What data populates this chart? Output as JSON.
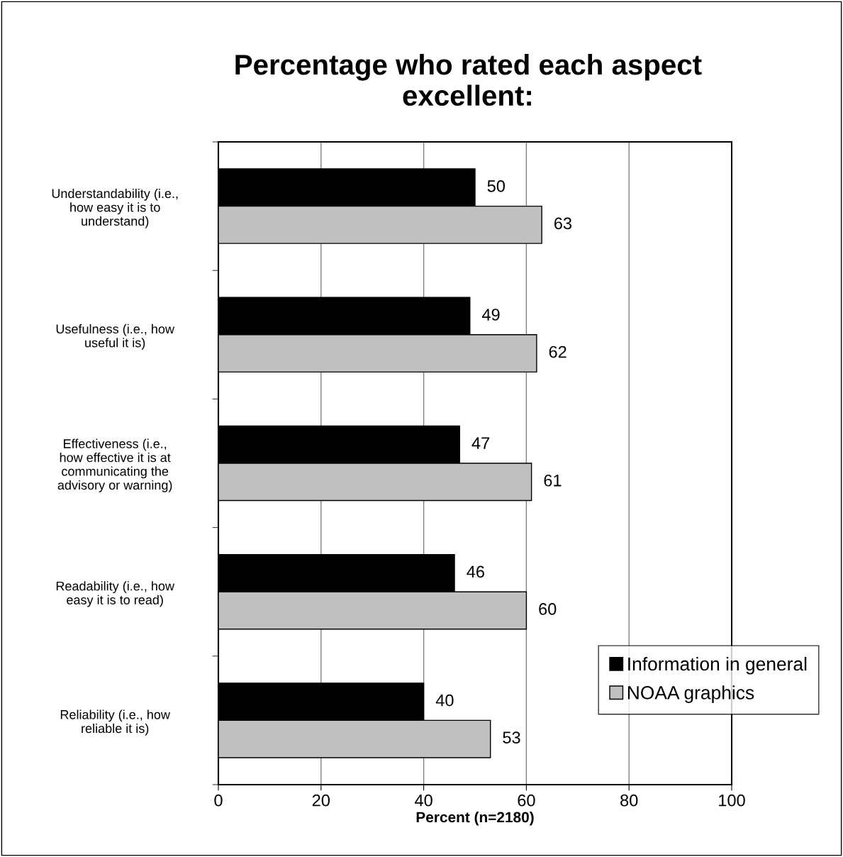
{
  "chart_data": {
    "type": "bar",
    "orientation": "horizontal",
    "title": "Percentage who rated each aspect\nexcellent:",
    "xlabel": "Percent (n=2180)",
    "categories": [
      "Understandability (i.e.,\nhow easy it is to\nunderstand)",
      "Usefulness (i.e., how\nuseful it is)",
      "Effectiveness (i.e.,\nhow effective it is at\ncommunicating the\nadvisory or warning)",
      "Readability (i.e., how\neasy it is to read)",
      "Reliability (i.e., how\nreliable it is)"
    ],
    "series": [
      {
        "name": "Information in general",
        "color": "#000000",
        "values": [
          50,
          49,
          47,
          46,
          40
        ]
      },
      {
        "name": "NOAA graphics",
        "color": "#c0c0c0",
        "values": [
          63,
          62,
          61,
          60,
          53
        ]
      }
    ],
    "xlim": [
      0,
      100
    ],
    "xticks": [
      0,
      20,
      40,
      60,
      80,
      100
    ],
    "grid": "x",
    "legend": "bottom right",
    "data_labels": true
  }
}
